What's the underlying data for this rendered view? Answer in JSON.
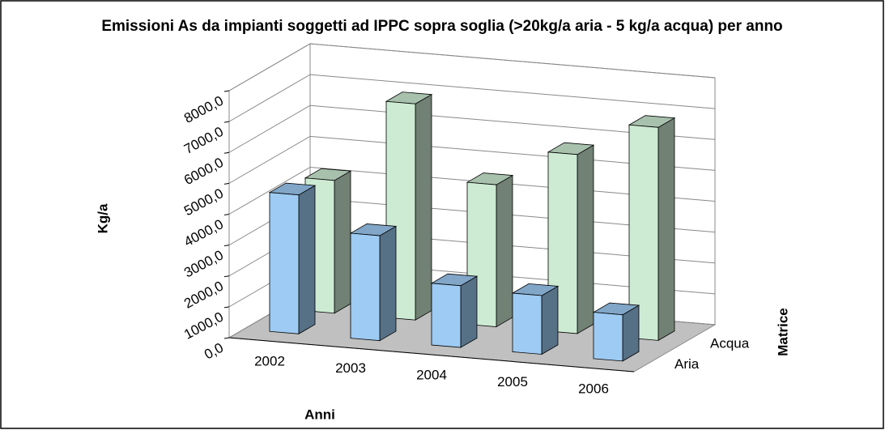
{
  "chart_data": {
    "type": "bar3d",
    "title": "Emissioni As da impianti soggetti ad IPPC sopra soglia (>20kg/a aria - 5 kg/a acqua) per anno",
    "categories": [
      "2002",
      "2003",
      "2004",
      "2005",
      "2006"
    ],
    "series": [
      {
        "name": "Aria",
        "color": "#9dcbf3",
        "values": [
          4500,
          3400,
          2000,
          1900,
          1500
        ]
      },
      {
        "name": "Acqua",
        "color": "#cdebd3",
        "values": [
          4300,
          7000,
          4600,
          5800,
          6900
        ]
      }
    ],
    "ylim": [
      0,
      8000
    ],
    "yticks": [
      {
        "value": 0,
        "label": "0,0"
      },
      {
        "value": 1000,
        "label": "1000,0"
      },
      {
        "value": 2000,
        "label": "2000,0"
      },
      {
        "value": 3000,
        "label": "3000,0"
      },
      {
        "value": 4000,
        "label": "4000,0"
      },
      {
        "value": 5000,
        "label": "5000,0"
      },
      {
        "value": 6000,
        "label": "6000,0"
      },
      {
        "value": 7000,
        "label": "7000,0"
      },
      {
        "value": 8000,
        "label": "8000,0"
      }
    ],
    "xlabel": "Anni",
    "ylabel": "Kg/a",
    "zlabel": "Matrice",
    "grid": true
  }
}
